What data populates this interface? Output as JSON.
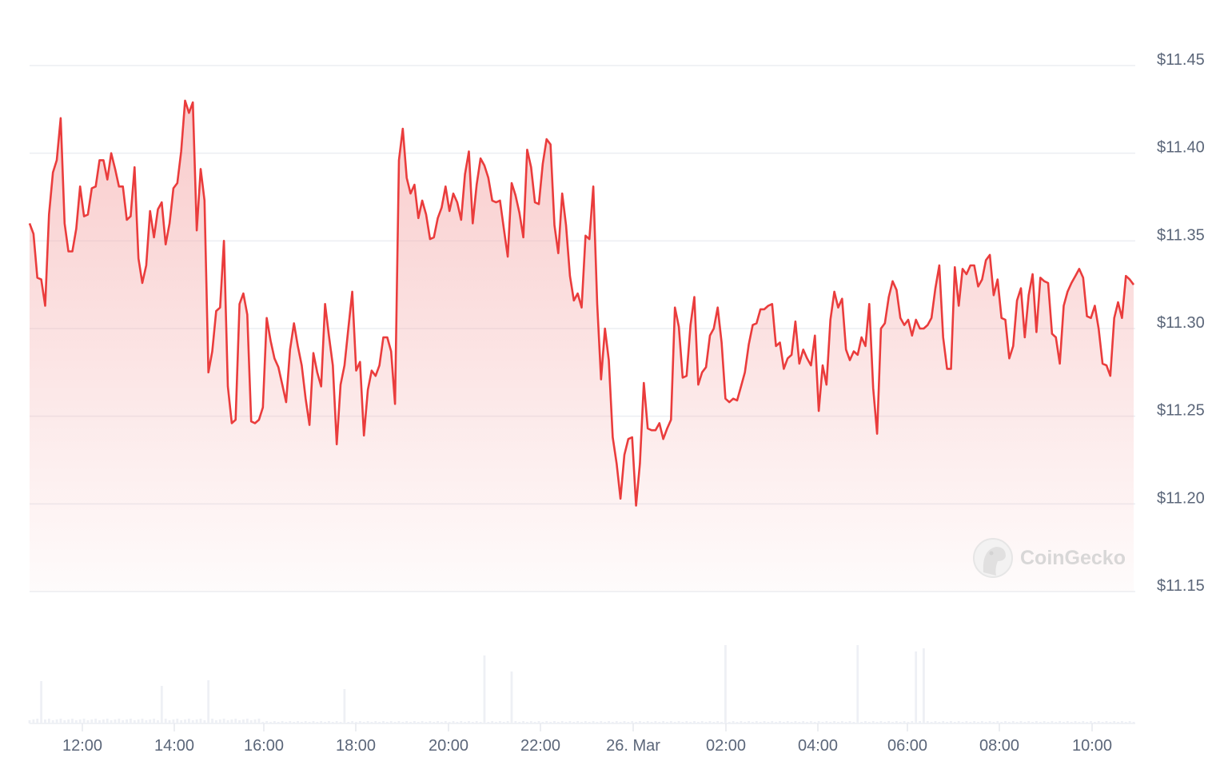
{
  "chart_data": {
    "type": "area",
    "title": "",
    "xlabel": "",
    "ylabel": "",
    "ylim": [
      11.15,
      11.45
    ],
    "y_ticks": [
      "$11.45",
      "$11.40",
      "$11.35",
      "$11.30",
      "$11.25",
      "$11.20",
      "$11.15"
    ],
    "y_tick_values": [
      11.45,
      11.4,
      11.35,
      11.3,
      11.25,
      11.2,
      11.15
    ],
    "x_ticks": [
      "12:00",
      "14:00",
      "16:00",
      "18:00",
      "20:00",
      "22:00",
      "26. Mar",
      "02:00",
      "04:00",
      "06:00",
      "08:00",
      "10:00"
    ],
    "start_time": "10:51",
    "interval_minutes": 5,
    "grid": true,
    "legend": "none",
    "line_color": "#ea3c3c",
    "fill_color": "#f4a8a8",
    "volume_color": "#eef0f5",
    "watermark": "CoinGecko",
    "prices": [
      11.36,
      11.354,
      11.329,
      11.328,
      11.313,
      11.365,
      11.389,
      11.396,
      11.42,
      11.36,
      11.344,
      11.344,
      11.357,
      11.381,
      11.364,
      11.365,
      11.38,
      11.381,
      11.396,
      11.396,
      11.385,
      11.4,
      11.391,
      11.381,
      11.381,
      11.362,
      11.364,
      11.392,
      11.34,
      11.326,
      11.336,
      11.367,
      11.352,
      11.368,
      11.372,
      11.348,
      11.36,
      11.38,
      11.383,
      11.401,
      11.43,
      11.423,
      11.429,
      11.356,
      11.391,
      11.373,
      11.275,
      11.287,
      11.31,
      11.312,
      11.35,
      11.267,
      11.246,
      11.248,
      11.314,
      11.32,
      11.308,
      11.247,
      11.246,
      11.248,
      11.255,
      11.306,
      11.293,
      11.283,
      11.278,
      11.268,
      11.258,
      11.288,
      11.303,
      11.29,
      11.279,
      11.26,
      11.245,
      11.286,
      11.275,
      11.267,
      11.314,
      11.296,
      11.279,
      11.234,
      11.268,
      11.279,
      11.3,
      11.321,
      11.276,
      11.281,
      11.239,
      11.265,
      11.276,
      11.273,
      11.279,
      11.295,
      11.295,
      11.287,
      11.257,
      11.396,
      11.414,
      11.386,
      11.377,
      11.382,
      11.363,
      11.373,
      11.365,
      11.351,
      11.352,
      11.363,
      11.369,
      11.381,
      11.367,
      11.377,
      11.372,
      11.362,
      11.388,
      11.401,
      11.36,
      11.382,
      11.397,
      11.393,
      11.386,
      11.373,
      11.372,
      11.373,
      11.357,
      11.341,
      11.383,
      11.376,
      11.366,
      11.352,
      11.402,
      11.392,
      11.372,
      11.371,
      11.394,
      11.408,
      11.405,
      11.359,
      11.343,
      11.377,
      11.359,
      11.33,
      11.316,
      11.32,
      11.312,
      11.353,
      11.351,
      11.381,
      11.314,
      11.271,
      11.3,
      11.282,
      11.238,
      11.223,
      11.203,
      11.228,
      11.237,
      11.238,
      11.199,
      11.223,
      11.269,
      11.243,
      11.242,
      11.242,
      11.246,
      11.237,
      11.243,
      11.248,
      11.312,
      11.301,
      11.272,
      11.273,
      11.302,
      11.318,
      11.268,
      11.275,
      11.278,
      11.296,
      11.3,
      11.312,
      11.292,
      11.26,
      11.258,
      11.26,
      11.259,
      11.267,
      11.275,
      11.291,
      11.302,
      11.303,
      11.311,
      11.311,
      11.313,
      11.314,
      11.29,
      11.292,
      11.277,
      11.283,
      11.285,
      11.304,
      11.28,
      11.288,
      11.283,
      11.279,
      11.296,
      11.253,
      11.279,
      11.268,
      11.305,
      11.321,
      11.312,
      11.317,
      11.288,
      11.282,
      11.287,
      11.285,
      11.295,
      11.29,
      11.314,
      11.266,
      11.24,
      11.3,
      11.303,
      11.318,
      11.327,
      11.322,
      11.306,
      11.302,
      11.305,
      11.296,
      11.305,
      11.3,
      11.3,
      11.302,
      11.306,
      11.323,
      11.336,
      11.295,
      11.277,
      11.277,
      11.335,
      11.313,
      11.334,
      11.331,
      11.336,
      11.336,
      11.324,
      11.328,
      11.339,
      11.342,
      11.319,
      11.328,
      11.306,
      11.305,
      11.283,
      11.29,
      11.316,
      11.323,
      11.295,
      11.319,
      11.331,
      11.298,
      11.329,
      11.327,
      11.326,
      11.297,
      11.295,
      11.28,
      11.313,
      11.321,
      11.326,
      11.33,
      11.334,
      11.329,
      11.307,
      11.306,
      11.313,
      11.3,
      11.28,
      11.279,
      11.273,
      11.306,
      11.315,
      11.306,
      11.33,
      11.328,
      11.325
    ],
    "volume_spikes_relative": [
      {
        "time": "11:06",
        "value": 53
      },
      {
        "time": "13:41",
        "value": 47
      },
      {
        "time": "14:41",
        "value": 54
      },
      {
        "time": "17:36",
        "value": 43
      },
      {
        "time": "20:36",
        "value": 85
      },
      {
        "time": "21:11",
        "value": 65
      },
      {
        "time": "01:46",
        "value": 98
      },
      {
        "time": "04:36",
        "value": 98
      },
      {
        "time": "05:51",
        "value": 90
      },
      {
        "time": "06:01",
        "value": 94
      }
    ]
  }
}
